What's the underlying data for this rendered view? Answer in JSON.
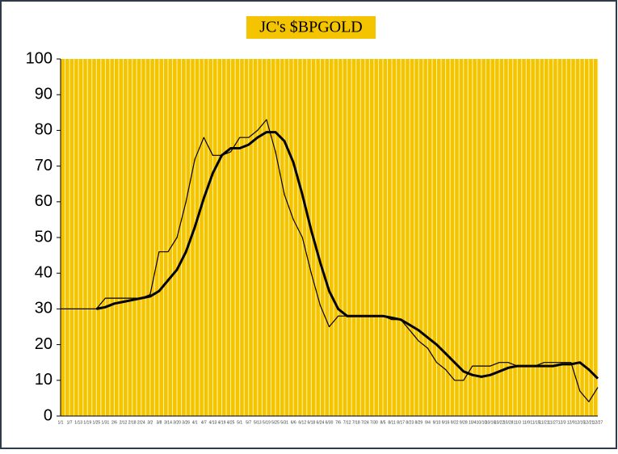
{
  "chart_data": {
    "type": "line",
    "title": "JC's $BPGOLD",
    "categories": [
      "1/1",
      "1/7",
      "1/13",
      "1/19",
      "1/25",
      "1/31",
      "2/6",
      "2/12",
      "2/18",
      "2/24",
      "3/2",
      "3/8",
      "3/14",
      "3/20",
      "3/26",
      "4/1",
      "4/7",
      "4/13",
      "4/19",
      "4/25",
      "5/1",
      "5/7",
      "5/13",
      "5/19",
      "5/25",
      "5/31",
      "6/6",
      "6/12",
      "6/18",
      "6/24",
      "6/30",
      "7/6",
      "7/12",
      "7/18",
      "7/24",
      "7/30",
      "8/5",
      "8/11",
      "8/17",
      "8/23",
      "8/29",
      "9/4",
      "9/10",
      "9/16",
      "9/22",
      "9/28",
      "10/4",
      "10/10",
      "10/16",
      "10/22",
      "10/28",
      "11/3",
      "11/9",
      "11/15",
      "11/21",
      "11/27",
      "12/3",
      "12/9",
      "12/15",
      "12/21",
      "12/27"
    ],
    "series": [
      {
        "color": "#000000",
        "values": [
          30,
          30,
          30,
          30,
          30,
          33,
          33,
          33,
          33,
          33,
          34,
          46,
          46,
          50,
          60,
          72,
          78,
          73,
          73,
          74,
          78,
          78,
          80,
          83,
          74,
          62,
          55,
          50,
          40,
          31,
          25,
          28,
          28,
          28,
          28,
          28,
          28,
          27,
          27,
          24,
          21,
          19,
          15,
          13,
          10,
          10,
          14,
          14,
          14,
          15,
          15,
          14,
          14,
          14,
          15,
          15,
          15,
          15,
          7,
          4,
          8
        ]
      },
      {
        "color": "#000000",
        "values": [
          null,
          null,
          null,
          null,
          30,
          30.5,
          31.5,
          32,
          32.5,
          33,
          33.5,
          35,
          38,
          41,
          46,
          53,
          61,
          68,
          73,
          75,
          75,
          76,
          78,
          79.5,
          79.5,
          77,
          71,
          62,
          52,
          43,
          35,
          30,
          28,
          28,
          28,
          28,
          28,
          27.5,
          27,
          25.5,
          24,
          22,
          20,
          17.5,
          15,
          12.5,
          11.5,
          11,
          11.5,
          12.5,
          13.5,
          14,
          14,
          14,
          14,
          14,
          14.5,
          14.5,
          15,
          13,
          10.5
        ]
      }
    ],
    "ylim": [
      0,
      100
    ],
    "yticks": [
      0,
      10,
      20,
      30,
      40,
      50,
      60,
      70,
      80,
      90,
      100
    ],
    "background": "#f5c400",
    "grid": true
  }
}
